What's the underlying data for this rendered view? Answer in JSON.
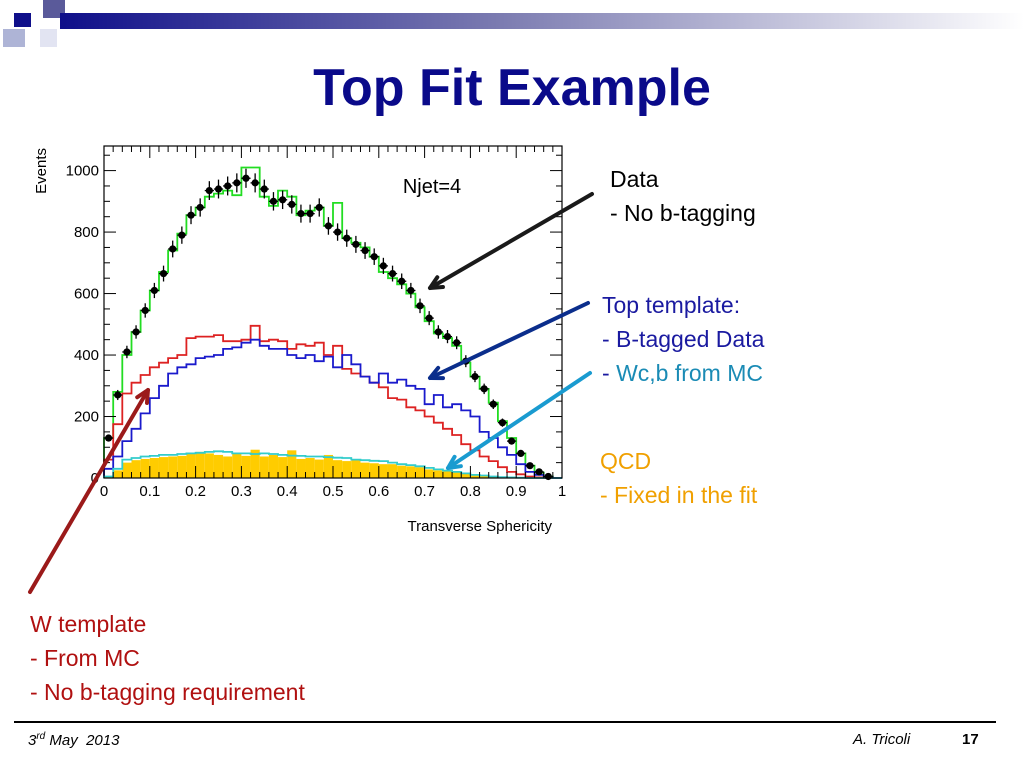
{
  "slide": {
    "title": "Top Fit Example",
    "annotations": {
      "data": [
        "Data",
        "- No b-tagging"
      ],
      "top": [
        "Top template:",
        "- B-tagged Data",
        "- ",
        "Wc,b from MC"
      ],
      "qcd": [
        "QCD",
        "- Fixed in the fit"
      ],
      "w": [
        "W template",
        "- From MC",
        "- No b-tagging requirement"
      ]
    },
    "footer": {
      "date_day": "3",
      "date_sup": "rd",
      "date_rest": "May  2013",
      "author": "A. Tricoli",
      "page": "17"
    },
    "colors": {
      "title": "#0a0a8a",
      "data_arrow": "#1a1a1a",
      "top_arrow": "#0b2e8c",
      "qcd_arrow": "#1a9bd0",
      "w_arrow": "#9b1a1a",
      "top_text": "#1a1aa0",
      "wcb_text": "#1a8bb5",
      "qcd_text": "#f0a000",
      "w_text": "#b01010"
    }
  },
  "chart_data": {
    "type": "histogram",
    "title": "",
    "inset_label": "Njet=4",
    "xlabel": "Transverse Sphericity",
    "ylabel": "Events",
    "xlim": [
      0,
      1
    ],
    "ylim": [
      0,
      1080
    ],
    "xticks": [
      "0",
      "0.1",
      "0.2",
      "0.3",
      "0.4",
      "0.5",
      "0.6",
      "0.7",
      "0.8",
      "0.9",
      "1"
    ],
    "yticks": [
      "0",
      "200",
      "400",
      "600",
      "800",
      "1000"
    ],
    "bin_width": 0.02,
    "series": [
      {
        "style": "points",
        "color": "#000000",
        "values": [
          130,
          270,
          410,
          475,
          545,
          610,
          665,
          745,
          790,
          855,
          880,
          935,
          940,
          950,
          960,
          975,
          960,
          940,
          900,
          905,
          890,
          860,
          860,
          880,
          820,
          800,
          780,
          760,
          740,
          720,
          690,
          665,
          640,
          610,
          560,
          520,
          475,
          460,
          440,
          380,
          330,
          290,
          240,
          180,
          120,
          80,
          40,
          20,
          5,
          0
        ]
      },
      {
        "style": "step",
        "color": "#22dd22",
        "values": [
          130,
          280,
          400,
          475,
          545,
          610,
          670,
          740,
          795,
          855,
          880,
          915,
          925,
          935,
          920,
          1010,
          1010,
          915,
          885,
          935,
          915,
          855,
          870,
          880,
          820,
          895,
          780,
          765,
          750,
          720,
          670,
          650,
          630,
          600,
          555,
          510,
          470,
          455,
          430,
          375,
          330,
          290,
          245,
          185,
          130,
          80,
          40,
          18,
          5,
          0
        ]
      },
      {
        "style": "step",
        "color": "#dd2222",
        "values": [
          60,
          175,
          275,
          310,
          335,
          360,
          375,
          390,
          400,
          455,
          460,
          460,
          465,
          445,
          445,
          450,
          495,
          445,
          450,
          445,
          420,
          435,
          430,
          440,
          400,
          430,
          355,
          340,
          330,
          310,
          295,
          260,
          255,
          230,
          220,
          200,
          180,
          160,
          140,
          110,
          90,
          70,
          55,
          35,
          20,
          12,
          5,
          2,
          0,
          0
        ]
      },
      {
        "style": "step",
        "color": "#1a1acc",
        "values": [
          30,
          70,
          120,
          160,
          210,
          260,
          300,
          340,
          360,
          370,
          390,
          395,
          400,
          420,
          425,
          440,
          450,
          430,
          420,
          420,
          400,
          390,
          400,
          380,
          395,
          360,
          400,
          370,
          330,
          310,
          340,
          310,
          320,
          300,
          290,
          240,
          270,
          230,
          240,
          220,
          200,
          150,
          130,
          100,
          75,
          45,
          20,
          10,
          3,
          0
        ]
      },
      {
        "style": "step",
        "color": "#33cccc",
        "values": [
          5,
          30,
          60,
          65,
          70,
          72,
          75,
          75,
          78,
          80,
          82,
          85,
          87,
          85,
          80,
          80,
          78,
          80,
          78,
          75,
          73,
          72,
          70,
          70,
          68,
          66,
          65,
          60,
          58,
          56,
          55,
          50,
          45,
          42,
          38,
          33,
          28,
          24,
          20,
          15,
          10,
          8,
          5,
          3,
          2,
          1,
          0,
          0,
          0,
          0
        ]
      },
      {
        "style": "filled",
        "color": "#ffcc00",
        "values": [
          5,
          25,
          50,
          58,
          62,
          65,
          68,
          70,
          72,
          78,
          85,
          80,
          75,
          70,
          78,
          72,
          92,
          70,
          75,
          68,
          90,
          62,
          65,
          60,
          75,
          58,
          55,
          58,
          50,
          48,
          45,
          45,
          40,
          38,
          35,
          28,
          25,
          22,
          18,
          15,
          10,
          8,
          5,
          3,
          2,
          1,
          0,
          0,
          0,
          0
        ]
      }
    ]
  }
}
